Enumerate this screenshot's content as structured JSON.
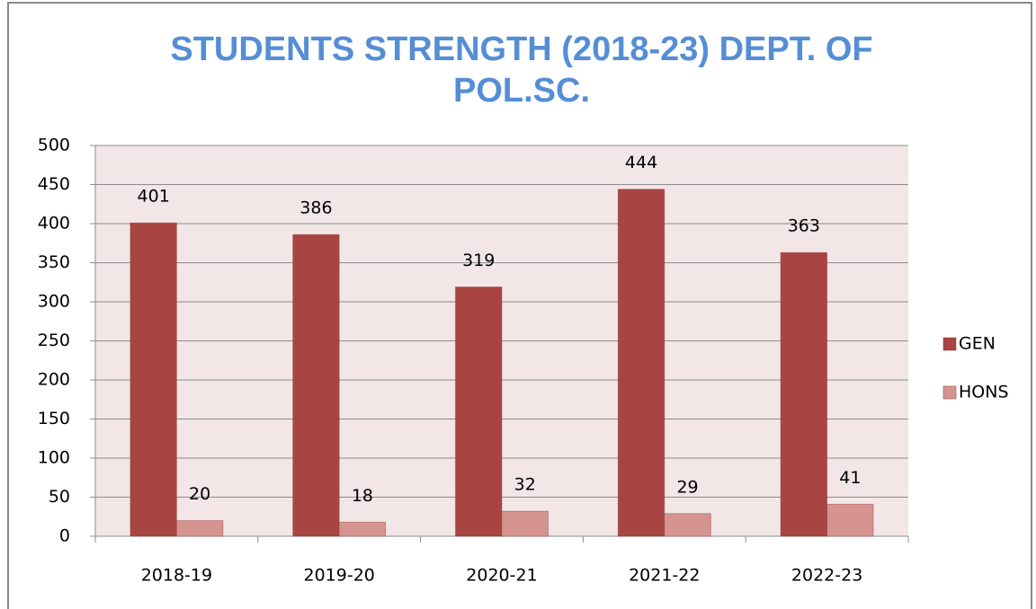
{
  "chart_data": {
    "type": "bar",
    "title": "STUDENTS STRENGTH (2018-23) DEPT. OF POL.SC.",
    "categories": [
      "2018-19",
      "2019-20",
      "2020-21",
      "2021-22",
      "2022-23"
    ],
    "series": [
      {
        "name": "GEN",
        "color": "#a84543",
        "values": [
          401,
          386,
          319,
          444,
          363
        ]
      },
      {
        "name": "HONS",
        "color": "#d69491",
        "values": [
          20,
          18,
          32,
          29,
          41
        ]
      }
    ],
    "ylim": [
      0,
      500
    ],
    "yticks": [
      0,
      50,
      100,
      150,
      200,
      250,
      300,
      350,
      400,
      450,
      500
    ],
    "grid": true,
    "legend": "right",
    "plot_background": "#f2e6e6"
  }
}
